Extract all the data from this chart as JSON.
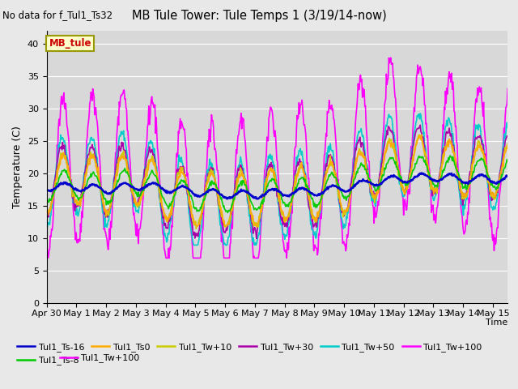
{
  "title": "MB Tule Tower: Tule Temps 1 (3/19/14-now)",
  "top_left_text": "No data for f_Tul1_Ts32",
  "ylabel": "Temperature (C)",
  "xlabel": "Time",
  "ylim": [
    0,
    42
  ],
  "yticks": [
    0,
    5,
    10,
    15,
    20,
    25,
    30,
    35,
    40
  ],
  "fig_facecolor": "#e8e8e8",
  "ax_facecolor": "#d8d8d8",
  "legend_box": {
    "label": "MB_tule",
    "bg": "#ffffcc",
    "edge": "#999900"
  },
  "series": {
    "Tul1_Ts-16": {
      "color": "#0000cc",
      "lw": 1.8,
      "zorder": 5
    },
    "Tul1_Ts-8": {
      "color": "#00cc00",
      "lw": 1.2,
      "zorder": 4
    },
    "Tul1_Ts0": {
      "color": "#ffaa00",
      "lw": 1.2,
      "zorder": 3
    },
    "Tul1_Tw+10": {
      "color": "#cccc00",
      "lw": 1.2,
      "zorder": 3
    },
    "Tul1_Tw+30": {
      "color": "#aa00aa",
      "lw": 1.2,
      "zorder": 3
    },
    "Tul1_Tw+50": {
      "color": "#00cccc",
      "lw": 1.2,
      "zorder": 3
    },
    "Tul1_Tw+100": {
      "color": "#ff00ff",
      "lw": 1.2,
      "zorder": 2
    }
  },
  "xtick_labels": [
    "Apr 30",
    "May 1",
    "May 2",
    "May 3",
    "May 4",
    "May 5",
    "May 6",
    "May 7",
    "May 8",
    "May 9",
    "May 10",
    "May 11",
    "May 12",
    "May 13",
    "May 14",
    "May 15"
  ],
  "legend_entries": [
    {
      "label": "Tul1_Ts-16",
      "color": "#0000cc"
    },
    {
      "label": "Tul1_Ts-8",
      "color": "#00cc00"
    },
    {
      "label": "Tul1_Ts0",
      "color": "#ffaa00"
    },
    {
      "label": "Tul1_Tw+10",
      "color": "#cccc00"
    },
    {
      "label": "Tul1_Tw+30",
      "color": "#aa00aa"
    },
    {
      "label": "Tul1_Tw+50",
      "color": "#00cccc"
    },
    {
      "label": "Tul1_Tw+100",
      "color": "#ff00ff"
    }
  ]
}
